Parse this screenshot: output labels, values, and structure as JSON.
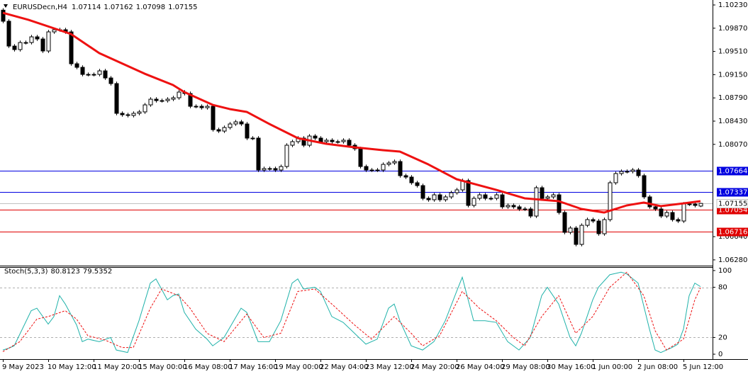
{
  "chart_data": {
    "type": "candlestick",
    "title": "EURUSDecn,H4",
    "categories": [
      "9 May 2023",
      null,
      null,
      null,
      null,
      null,
      null,
      null,
      "10 May 12:00",
      null,
      null,
      null,
      null,
      null,
      null,
      null,
      "11 May 20:00",
      null,
      null,
      null,
      null,
      null,
      null,
      null,
      "15 May 00:00",
      null,
      null,
      null,
      null,
      null,
      null,
      null,
      "16 May 08:00",
      null,
      null,
      null,
      null,
      null,
      null,
      null,
      "17 May 16:00",
      null,
      null,
      null,
      null,
      null,
      null,
      null,
      "19 May 00:00",
      null,
      null,
      null,
      null,
      null,
      null,
      null,
      "22 May 04:00",
      null,
      null,
      null,
      null,
      null,
      null,
      null,
      "23 May 12:00",
      null,
      null,
      null,
      null,
      null,
      null,
      null,
      "24 May 20:00",
      null,
      null,
      null,
      null,
      null,
      null,
      null,
      "26 May 04:00",
      null,
      null,
      null,
      null,
      null,
      null,
      null,
      "29 May 08:00",
      null,
      null,
      null,
      null,
      null,
      null,
      null,
      "30 May 16:00",
      null,
      null,
      null,
      null,
      null,
      null,
      null,
      "1 Jun 00:00",
      null,
      null,
      null,
      null,
      null,
      null,
      null,
      "2 Jun 08:00",
      null,
      null,
      null,
      null,
      null,
      null,
      null,
      "5 Jun 12:00",
      null,
      null,
      null
    ],
    "candles": [
      [
        1.1015,
        1.1018,
        1.09948,
        1.09978
      ],
      [
        1.09978,
        1.10008,
        1.09563,
        1.09593
      ],
      [
        1.09593,
        1.09623,
        1.09509,
        1.09539
      ],
      [
        1.09539,
        1.09678,
        1.09509,
        1.09648
      ],
      [
        1.09648,
        1.09678,
        1.09618,
        1.09648
      ],
      [
        1.09648,
        1.09766,
        1.09618,
        1.09736
      ],
      [
        1.09736,
        1.09766,
        1.09673,
        1.09703
      ],
      [
        1.09703,
        1.09733,
        1.09487,
        1.09517
      ],
      [
        1.09517,
        1.09843,
        1.09487,
        1.09813
      ],
      [
        1.09813,
        1.09876,
        1.09783,
        1.09846
      ],
      [
        1.09846,
        1.09876,
        1.09816,
        1.09846
      ],
      [
        1.09846,
        1.09876,
        1.09783,
        1.09813
      ],
      [
        1.09813,
        1.09843,
        1.09289,
        1.09319
      ],
      [
        1.09319,
        1.09349,
        1.09234,
        1.09264
      ],
      [
        1.09264,
        1.09294,
        1.09124,
        1.09154
      ],
      [
        1.09154,
        1.09184,
        1.09124,
        1.09154
      ],
      [
        1.09154,
        1.09184,
        1.09124,
        1.09154
      ],
      [
        1.09154,
        1.09239,
        1.09124,
        1.09209
      ],
      [
        1.09209,
        1.09239,
        1.09069,
        1.09099
      ],
      [
        1.09099,
        1.09129,
        1.08982,
        1.09012
      ],
      [
        1.09012,
        1.09042,
        1.08521,
        1.08551
      ],
      [
        1.08551,
        1.08581,
        1.08499,
        1.08529
      ],
      [
        1.08529,
        1.08559,
        1.08488,
        1.08518
      ],
      [
        1.08518,
        1.08581,
        1.08488,
        1.08551
      ],
      [
        1.08551,
        1.08603,
        1.08521,
        1.08573
      ],
      [
        1.08573,
        1.08712,
        1.08543,
        1.08682
      ],
      [
        1.08682,
        1.088,
        1.08652,
        1.0877
      ],
      [
        1.0877,
        1.088,
        1.08718,
        1.08748
      ],
      [
        1.08748,
        1.08778,
        1.08718,
        1.08748
      ],
      [
        1.08748,
        1.088,
        1.08718,
        1.0877
      ],
      [
        1.0877,
        1.08822,
        1.0874,
        1.08792
      ],
      [
        1.08792,
        1.0891,
        1.08762,
        1.0888
      ],
      [
        1.0888,
        1.0891,
        1.08828,
        1.08858
      ],
      [
        1.08858,
        1.08888,
        1.0863,
        1.0866
      ],
      [
        1.0866,
        1.0869,
        1.0863,
        1.0866
      ],
      [
        1.0866,
        1.0869,
        1.08608,
        1.08638
      ],
      [
        1.08638,
        1.0869,
        1.08608,
        1.0866
      ],
      [
        1.0866,
        1.0869,
        1.08268,
        1.08298
      ],
      [
        1.08298,
        1.08328,
        1.08246,
        1.08276
      ],
      [
        1.08276,
        1.08361,
        1.08246,
        1.08331
      ],
      [
        1.08331,
        1.08416,
        1.08301,
        1.08386
      ],
      [
        1.08386,
        1.08449,
        1.08356,
        1.08419
      ],
      [
        1.08419,
        1.08449,
        1.08356,
        1.08386
      ],
      [
        1.08386,
        1.08416,
        1.08137,
        1.08167
      ],
      [
        1.08167,
        1.08197,
        1.08137,
        1.08167
      ],
      [
        1.08167,
        1.08197,
        1.07643,
        1.07673
      ],
      [
        1.07673,
        1.07725,
        1.07643,
        1.07695
      ],
      [
        1.07695,
        1.07725,
        1.07665,
        1.07695
      ],
      [
        1.07695,
        1.07725,
        1.07643,
        1.07673
      ],
      [
        1.07673,
        1.07757,
        1.07643,
        1.07727
      ],
      [
        1.07727,
        1.08087,
        1.07697,
        1.08057
      ],
      [
        1.08057,
        1.08142,
        1.08027,
        1.08112
      ],
      [
        1.08112,
        1.08197,
        1.08082,
        1.08167
      ],
      [
        1.08167,
        1.08197,
        1.08027,
        1.08057
      ],
      [
        1.08057,
        1.08229,
        1.08027,
        1.08199
      ],
      [
        1.08199,
        1.08229,
        1.08137,
        1.08167
      ],
      [
        1.08167,
        1.08197,
        1.08082,
        1.08112
      ],
      [
        1.08112,
        1.08164,
        1.08082,
        1.08134
      ],
      [
        1.08134,
        1.08164,
        1.08082,
        1.08112
      ],
      [
        1.08112,
        1.08142,
        1.08082,
        1.08112
      ],
      [
        1.08112,
        1.08164,
        1.08082,
        1.08134
      ],
      [
        1.08134,
        1.08164,
        1.08027,
        1.08057
      ],
      [
        1.08057,
        1.08087,
        1.07972,
        1.08002
      ],
      [
        1.08002,
        1.08032,
        1.07697,
        1.07727
      ],
      [
        1.07727,
        1.07757,
        1.07643,
        1.07673
      ],
      [
        1.07673,
        1.07703,
        1.07643,
        1.07673
      ],
      [
        1.07673,
        1.07703,
        1.07643,
        1.07673
      ],
      [
        1.07673,
        1.0779,
        1.07643,
        1.0776
      ],
      [
        1.0776,
        1.07812,
        1.0773,
        1.07782
      ],
      [
        1.07782,
        1.07834,
        1.07752,
        1.07804
      ],
      [
        1.07804,
        1.07834,
        1.07555,
        1.07585
      ],
      [
        1.07585,
        1.07615,
        1.07533,
        1.07563
      ],
      [
        1.07563,
        1.07593,
        1.07445,
        1.07475
      ],
      [
        1.07475,
        1.07505,
        1.07401,
        1.07431
      ],
      [
        1.07431,
        1.07461,
        1.07204,
        1.07234
      ],
      [
        1.07234,
        1.07264,
        1.07182,
        1.07212
      ],
      [
        1.07212,
        1.07318,
        1.07182,
        1.07288
      ],
      [
        1.07288,
        1.07318,
        1.07182,
        1.07212
      ],
      [
        1.07212,
        1.07286,
        1.07182,
        1.07256
      ],
      [
        1.07256,
        1.07351,
        1.07226,
        1.07321
      ],
      [
        1.07321,
        1.07395,
        1.07291,
        1.07365
      ],
      [
        1.07365,
        1.07538,
        1.07335,
        1.07508
      ],
      [
        1.07508,
        1.07538,
        1.07094,
        1.07124
      ],
      [
        1.07124,
        1.07264,
        1.07094,
        1.07234
      ],
      [
        1.07234,
        1.07318,
        1.07204,
        1.07288
      ],
      [
        1.07288,
        1.07318,
        1.07204,
        1.07234
      ],
      [
        1.07234,
        1.07264,
        1.07204,
        1.07234
      ],
      [
        1.07234,
        1.07318,
        1.07204,
        1.07288
      ],
      [
        1.07288,
        1.07318,
        1.07072,
        1.07102
      ],
      [
        1.07102,
        1.07154,
        1.07072,
        1.07124
      ],
      [
        1.07124,
        1.07154,
        1.07072,
        1.07102
      ],
      [
        1.07102,
        1.07132,
        1.07039,
        1.07069
      ],
      [
        1.07069,
        1.07099,
        1.07039,
        1.07069
      ],
      [
        1.07069,
        1.07099,
        1.06929,
        1.06959
      ],
      [
        1.06959,
        1.07428,
        1.06929,
        1.07398
      ],
      [
        1.07398,
        1.07428,
        1.07204,
        1.07234
      ],
      [
        1.07234,
        1.07286,
        1.07204,
        1.07256
      ],
      [
        1.07256,
        1.07318,
        1.07226,
        1.07288
      ],
      [
        1.07288,
        1.07318,
        1.06984,
        1.07014
      ],
      [
        1.07014,
        1.07044,
        1.06677,
        1.06707
      ],
      [
        1.06707,
        1.06803,
        1.06677,
        1.06773
      ],
      [
        1.06773,
        1.06803,
        1.0649,
        1.0652
      ],
      [
        1.0652,
        1.06846,
        1.0649,
        1.06816
      ],
      [
        1.06816,
        1.06934,
        1.06786,
        1.06904
      ],
      [
        1.06904,
        1.06934,
        1.06852,
        1.06882
      ],
      [
        1.06882,
        1.06912,
        1.06655,
        1.06685
      ],
      [
        1.06685,
        1.06934,
        1.06655,
        1.06904
      ],
      [
        1.06904,
        1.07505,
        1.06874,
        1.07475
      ],
      [
        1.07475,
        1.07648,
        1.07445,
        1.07618
      ],
      [
        1.07618,
        1.07681,
        1.07588,
        1.07651
      ],
      [
        1.07651,
        1.07681,
        1.07621,
        1.07651
      ],
      [
        1.07651,
        1.07703,
        1.07621,
        1.07673
      ],
      [
        1.07673,
        1.07703,
        1.07555,
        1.07585
      ],
      [
        1.07585,
        1.07615,
        1.07226,
        1.07256
      ],
      [
        1.07256,
        1.07286,
        1.07072,
        1.07102
      ],
      [
        1.07102,
        1.07132,
        1.07039,
        1.07069
      ],
      [
        1.07069,
        1.07099,
        1.06929,
        1.06959
      ],
      [
        1.06959,
        1.07044,
        1.06929,
        1.07014
      ],
      [
        1.07014,
        1.07044,
        1.06874,
        1.06904
      ],
      [
        1.06904,
        1.06934,
        1.06852,
        1.06882
      ],
      [
        1.06882,
        1.07176,
        1.06852,
        1.07146
      ],
      [
        1.07146,
        1.07176,
        1.07116,
        1.07146
      ],
      [
        1.07146,
        1.07176,
        1.07094,
        1.07124
      ],
      [
        1.07114,
        1.07162,
        1.07098,
        1.07155
      ]
    ],
    "up_color": "#ffffff",
    "down_color": "#000000",
    "edge_color": "#000000",
    "ma": {
      "color": "#ee1111",
      "x": [
        0,
        4.5,
        12,
        17,
        25,
        30,
        32,
        37,
        40,
        43,
        47,
        52,
        57,
        62,
        67,
        70,
        75,
        80,
        87,
        92,
        95,
        98,
        102,
        106,
        110,
        113,
        116,
        120,
        123
      ],
      "values": [
        1.10109,
        1.1,
        1.0978,
        1.09484,
        1.09165,
        1.0899,
        1.0888,
        1.08682,
        1.08617,
        1.08573,
        1.08386,
        1.08167,
        1.08079,
        1.08024,
        1.0798,
        1.07958,
        1.0776,
        1.0753,
        1.07365,
        1.07234,
        1.07212,
        1.0719,
        1.07069,
        1.07014,
        1.07124,
        1.07168,
        1.07113,
        1.07155,
        1.0719
      ]
    },
    "levels": [
      {
        "value": 1.07664,
        "color": "#0000e0"
      },
      {
        "value": 1.07337,
        "color": "#0000e0"
      },
      {
        "value": 1.07054,
        "color": "#e00000"
      },
      {
        "value": 1.06716,
        "color": "#e00000"
      }
    ],
    "ylim": [
      1.06191,
      1.10307
    ],
    "yticks": [
      {
        "value": 1.1023,
        "label": "1.10230"
      },
      {
        "value": 1.0987,
        "label": "1.09870"
      },
      {
        "value": 1.0951,
        "label": "1.09510"
      },
      {
        "value": 1.0915,
        "label": "1.09150"
      },
      {
        "value": 1.0879,
        "label": "1.08790"
      },
      {
        "value": 1.0843,
        "label": "1.08430"
      },
      {
        "value": 1.0807,
        "label": "1.08070"
      },
      {
        "value": 1.0664,
        "label": "1.06640"
      },
      {
        "value": 1.0628,
        "label": "1.06280"
      }
    ],
    "stoch": {
      "title": "Stoch(5,3,3)",
      "ylim": [
        -5.9,
        104.2
      ],
      "yticks": [
        100,
        80,
        20,
        0
      ],
      "levels": [
        80,
        20
      ],
      "series": [
        {
          "color": "#20b2aa",
          "x": [
            0,
            1,
            2,
            5,
            6,
            8,
            9,
            10,
            11,
            13,
            14,
            15,
            17,
            19,
            20,
            22,
            24,
            26,
            27,
            29,
            30,
            31,
            32,
            34,
            36,
            37,
            39,
            42,
            43,
            45,
            47,
            49,
            51,
            52,
            53,
            55,
            56,
            58,
            60,
            62,
            64,
            66,
            68,
            69,
            70,
            72,
            74,
            76,
            78,
            80,
            81,
            83,
            85,
            87,
            89,
            91,
            93,
            95,
            96,
            98,
            100,
            101,
            102,
            104,
            105,
            107,
            109,
            110,
            112,
            114,
            115,
            116,
            118,
            119,
            120,
            121,
            122,
            123
          ],
          "values": [
            5,
            7,
            10,
            52,
            55,
            36,
            45,
            70,
            60,
            35,
            15,
            18,
            15,
            20,
            5,
            2,
            40,
            85,
            90,
            65,
            70,
            72,
            50,
            30,
            18,
            10,
            20,
            55,
            50,
            15,
            15,
            40,
            85,
            90,
            78,
            80,
            75,
            45,
            38,
            25,
            12,
            18,
            55,
            60,
            40,
            10,
            5,
            15,
            40,
            75,
            92,
            40,
            40,
            38,
            15,
            5,
            20,
            70,
            80,
            60,
            20,
            10,
            25,
            65,
            80,
            95,
            98,
            96,
            85,
            30,
            5,
            2,
            8,
            12,
            30,
            70,
            85,
            80.8123
          ]
        },
        {
          "color": "#ee1111",
          "dashed": true,
          "x": [
            0,
            3,
            6,
            8,
            11,
            13,
            15,
            18,
            21,
            23,
            26,
            28,
            31,
            33,
            36,
            39,
            43,
            46,
            49,
            52,
            55,
            58,
            62,
            65,
            69,
            72,
            74,
            77,
            81,
            84,
            87,
            90,
            92,
            95,
            98,
            101,
            104,
            107,
            110,
            113,
            115,
            117,
            120,
            122,
            123
          ],
          "values": [
            3,
            15,
            42,
            45,
            52,
            42,
            22,
            17,
            8,
            8,
            55,
            78,
            70,
            55,
            25,
            15,
            48,
            20,
            25,
            75,
            78,
            60,
            35,
            18,
            45,
            25,
            10,
            22,
            75,
            55,
            40,
            20,
            10,
            45,
            70,
            25,
            45,
            80,
            98,
            70,
            28,
            5,
            18,
            65,
            79.5352
          ]
        }
      ]
    }
  }
}
